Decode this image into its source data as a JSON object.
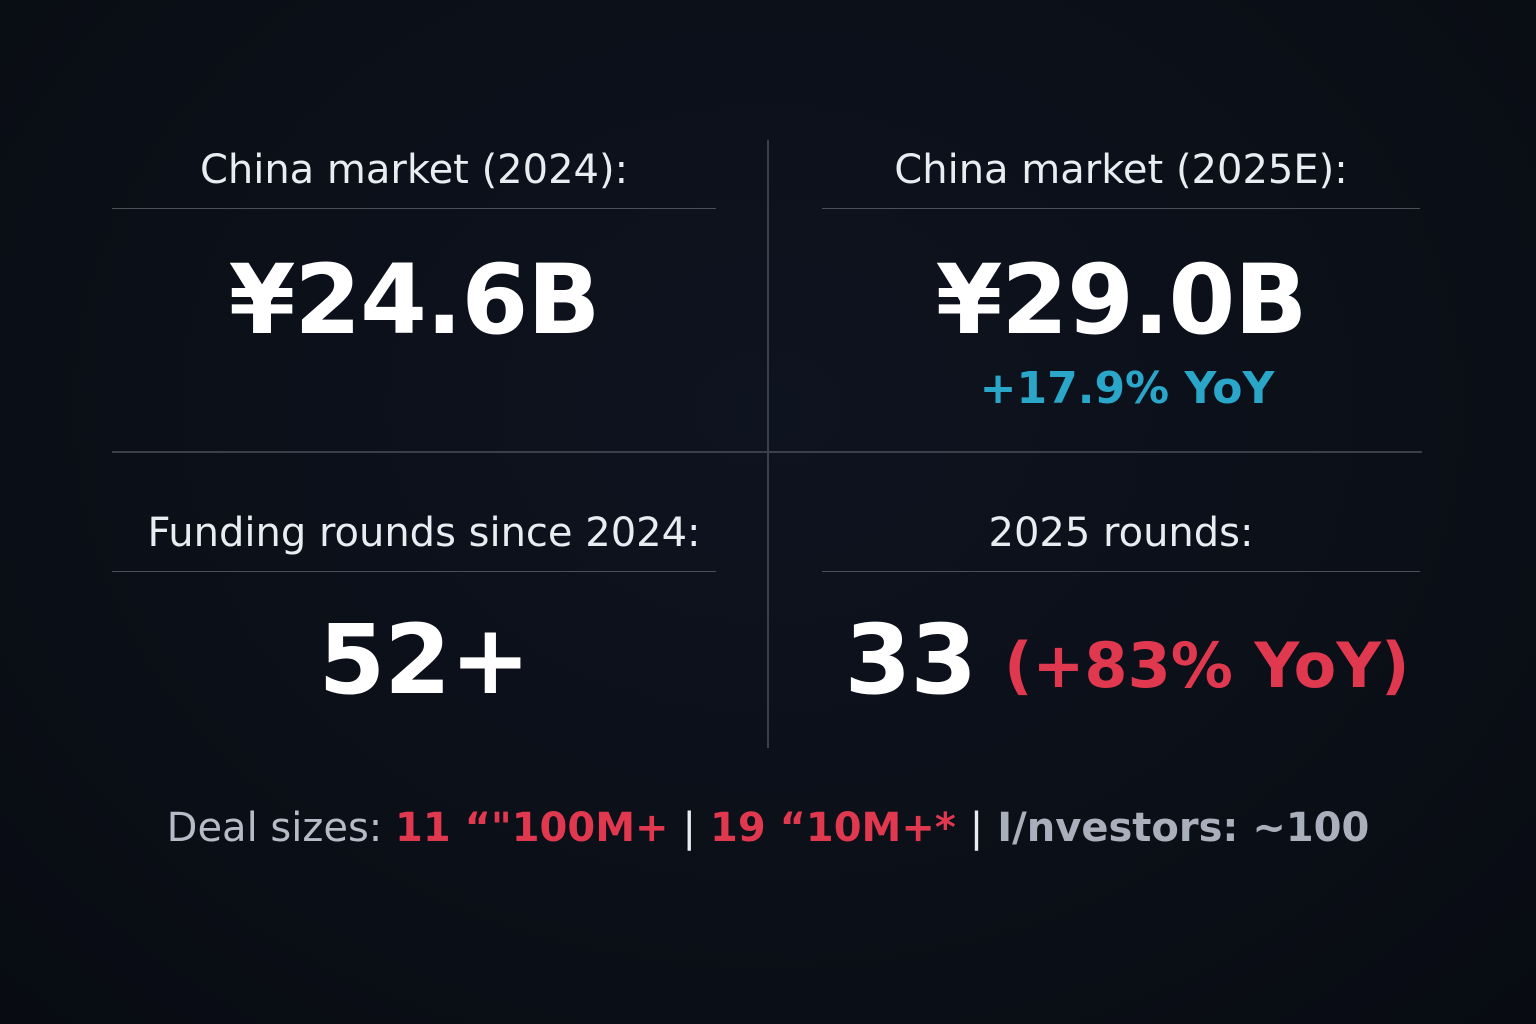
{
  "top_left": {
    "label": "China market (2024):",
    "value": "¥24.6B"
  },
  "top_right": {
    "label": "China market (2025E):",
    "value": "¥29.0B",
    "yoy": "+17.9% YoY"
  },
  "bottom_left": {
    "label": "Funding rounds since 2024:",
    "value": "52+"
  },
  "bottom_right": {
    "label": "2025 rounds:",
    "value": "33",
    "yoy": "(+83% YoY)"
  },
  "footer": {
    "deal_label": "Deal sizes:",
    "deal_1": "11 “\"100M+",
    "separator_1": "|",
    "deal_2": "19 “10M+*",
    "separator_2": "|",
    "investors": "I/nvestors: ~100"
  },
  "colors": {
    "background": "#0b0f17",
    "accent_teal": "#2aa6c9",
    "accent_red": "#e0384f"
  }
}
